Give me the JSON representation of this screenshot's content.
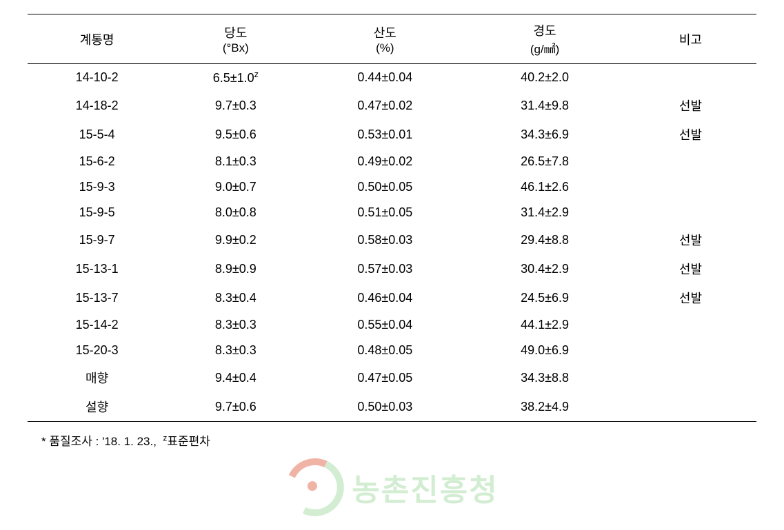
{
  "table": {
    "headers": {
      "line": "계통명",
      "sugar_label": "당도",
      "sugar_unit": "(°Bx)",
      "acid_label": "산도",
      "acid_unit": "(%)",
      "firm_label": "경도",
      "firm_unit": "(g/㎟)",
      "note": "비고"
    },
    "rows": [
      {
        "line": "14-10-2",
        "sugar_html": "6.5±1.0<span class=\"sup\">z</span>",
        "acid": "0.44±0.04",
        "firm": "40.2±2.0",
        "note": ""
      },
      {
        "line": "14-18-2",
        "sugar": "9.7±0.3",
        "acid": "0.47±0.02",
        "firm": "31.4±9.8",
        "note": "선발"
      },
      {
        "line": "15-5-4",
        "sugar": "9.5±0.6",
        "acid": "0.53±0.01",
        "firm": "34.3±6.9",
        "note": "선발"
      },
      {
        "line": "15-6-2",
        "sugar": "8.1±0.3",
        "acid": "0.49±0.02",
        "firm": "26.5±7.8",
        "note": ""
      },
      {
        "line": "15-9-3",
        "sugar": "9.0±0.7",
        "acid": "0.50±0.05",
        "firm": "46.1±2.6",
        "note": ""
      },
      {
        "line": "15-9-5",
        "sugar": "8.0±0.8",
        "acid": "0.51±0.05",
        "firm": "31.4±2.9",
        "note": ""
      },
      {
        "line": "15-9-7",
        "sugar": "9.9±0.2",
        "acid": "0.58±0.03",
        "firm": "29.4±8.8",
        "note": "선발"
      },
      {
        "line": "15-13-1",
        "sugar": "8.9±0.9",
        "acid": "0.57±0.03",
        "firm": "30.4±2.9",
        "note": "선발"
      },
      {
        "line": "15-13-7",
        "sugar": "8.3±0.4",
        "acid": "0.46±0.04",
        "firm": "24.5±6.9",
        "note": "선발"
      },
      {
        "line": "15-14-2",
        "sugar": "8.3±0.3",
        "acid": "0.55±0.04",
        "firm": "44.1±2.9",
        "note": ""
      },
      {
        "line": "15-20-3",
        "sugar": "8.3±0.3",
        "acid": "0.48±0.05",
        "firm": "49.0±6.9",
        "note": ""
      },
      {
        "line": "매향",
        "sugar": "9.4±0.4",
        "acid": "0.47±0.05",
        "firm": "34.3±8.8",
        "note": ""
      },
      {
        "line": "설향",
        "sugar": "9.7±0.6",
        "acid": "0.50±0.03",
        "firm": "38.2±4.9",
        "note": ""
      }
    ]
  },
  "footnote_html": "* 품질조사 : '18. 1. 23., &nbsp;<span class=\"sup\">z</span>표준편차",
  "watermark_text": "농촌진흥청",
  "style": {
    "body_bg": "#ffffff",
    "text_color": "#000000",
    "border_color": "#000000",
    "font_size_pt": 18,
    "header_font_size_pt": 18,
    "watermark_border_green": "#a7dca7",
    "watermark_orange": "#e06b4d",
    "watermark_text_color": "#a7dca7",
    "column_widths_pct": [
      19,
      19,
      22,
      22,
      18
    ]
  }
}
